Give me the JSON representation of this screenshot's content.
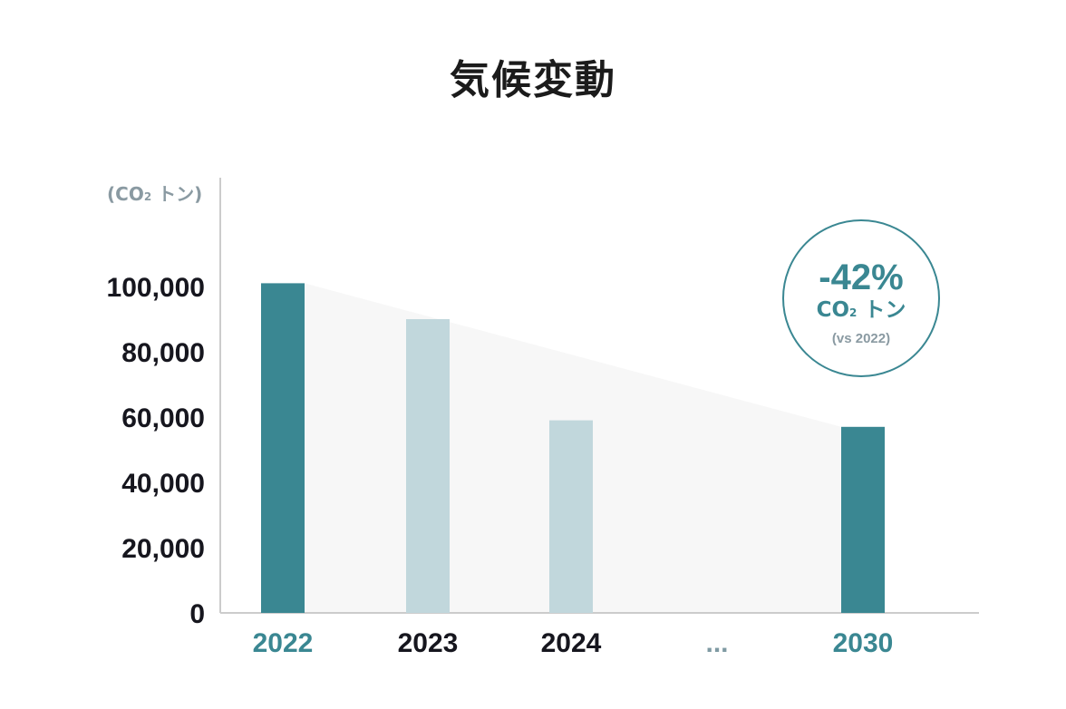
{
  "title": "気候変動",
  "unit_label": {
    "main": "(CO",
    "sub": "2",
    "rest": " トン)"
  },
  "badge": {
    "percent": "-42%",
    "unit_main": "CO",
    "unit_sub": "2",
    "unit_rest": " トン",
    "comparison": "(vs 2022)"
  },
  "colors": {
    "highlight_bar": "#3a8792",
    "muted_bar": "#c1d7dc",
    "trend_fill": "#f7f7f7",
    "axis": "#cccccc",
    "highlight_label": "#3a8792",
    "default_label": "#16161e",
    "gap_label": "#7f9aa3"
  },
  "chart_data": {
    "type": "bar",
    "title": "気候変動",
    "ylabel": "(CO2 トン)",
    "xlabel": "",
    "ylim": [
      0,
      100000
    ],
    "yticks": [
      "0",
      "20,000",
      "40,000",
      "60,000",
      "80,000",
      "100,000"
    ],
    "ytick_values": [
      0,
      20000,
      40000,
      60000,
      80000,
      100000
    ],
    "categories": [
      "2022",
      "2023",
      "2024",
      "...",
      "2030"
    ],
    "values": [
      101000,
      90000,
      59000,
      null,
      57000
    ],
    "highlighted": [
      true,
      false,
      false,
      false,
      true
    ],
    "trend_area": {
      "from": "2022",
      "to": "2030"
    },
    "grid": false
  }
}
